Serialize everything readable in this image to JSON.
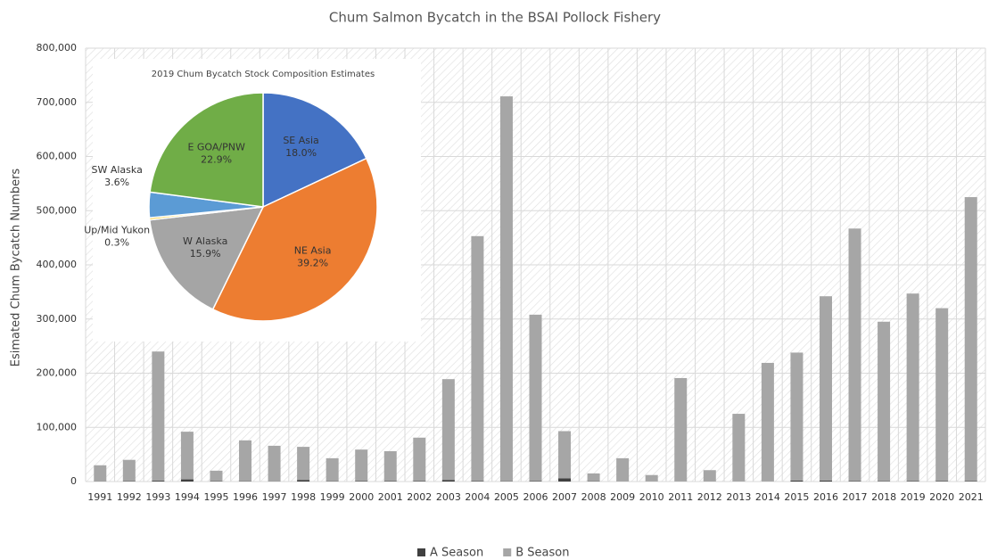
{
  "chart_data": [
    {
      "type": "bar",
      "stacked": true,
      "title": "Chum Salmon Bycatch in the BSAI Pollock Fishery",
      "y_label": "Esimated Chum Bycatch Numbers",
      "categories": [
        "1991",
        "1992",
        "1993",
        "1994",
        "1995",
        "1996",
        "1997",
        "1998",
        "1999",
        "2000",
        "2001",
        "2002",
        "2003",
        "2004",
        "2005",
        "2006",
        "2007",
        "2008",
        "2009",
        "2010",
        "2011",
        "2012",
        "2013",
        "2014",
        "2015",
        "2016",
        "2017",
        "2018",
        "2019",
        "2020",
        "2021"
      ],
      "series": [
        {
          "name": "A Season",
          "color": "#404040",
          "values": [
            400,
            700,
            1500,
            4000,
            700,
            600,
            400,
            3000,
            600,
            1000,
            1000,
            1000,
            3000,
            1000,
            600,
            1000,
            6000,
            600,
            200,
            200,
            200,
            300,
            100,
            200,
            2000,
            2000,
            1000,
            700,
            900,
            800,
            900
          ]
        },
        {
          "name": "B Season",
          "color": "#a6a6a6",
          "values": [
            29600,
            39300,
            238500,
            88000,
            19300,
            75400,
            65600,
            61000,
            42400,
            58000,
            55000,
            80000,
            186000,
            452000,
            710400,
            307000,
            87000,
            14400,
            42800,
            11800,
            190800,
            20700,
            124900,
            218800,
            236000,
            340000,
            466000,
            294300,
            346100,
            319200,
            524100
          ]
        }
      ],
      "ylim": [
        0,
        800000
      ],
      "yticks": [
        0,
        {
          "value": 100000,
          "label": "100,000"
        },
        {
          "value": 200000,
          "label": "200,000"
        },
        {
          "value": 300000,
          "label": "300,000"
        },
        {
          "value": 400000,
          "label": "400,000"
        },
        {
          "value": 500000,
          "label": "500,000"
        },
        {
          "value": 600000,
          "label": "600,000"
        },
        {
          "value": 700000,
          "label": "700,000"
        },
        {
          "value": 800000,
          "label": "800,000"
        }
      ],
      "grid": true,
      "legend": "bottom"
    },
    {
      "type": "pie",
      "title": "2019 Chum Bycatch Stock Composition Estimates",
      "labels": [
        "SE Asia",
        "NE Asia",
        "W Alaska",
        "Up/Mid Yukon",
        "SW Alaska",
        "E GOA/PNW"
      ],
      "values": [
        18.0,
        39.2,
        15.9,
        0.3,
        3.6,
        22.9
      ],
      "value_labels": [
        "18.0%",
        "39.2%",
        "15.9%",
        "0.3%",
        "3.6%",
        "22.9%"
      ],
      "colors": [
        "#4472c4",
        "#ed7d31",
        "#a5a5a5",
        "#ffc000",
        "#5b9bd5",
        "#70ad47"
      ]
    }
  ]
}
